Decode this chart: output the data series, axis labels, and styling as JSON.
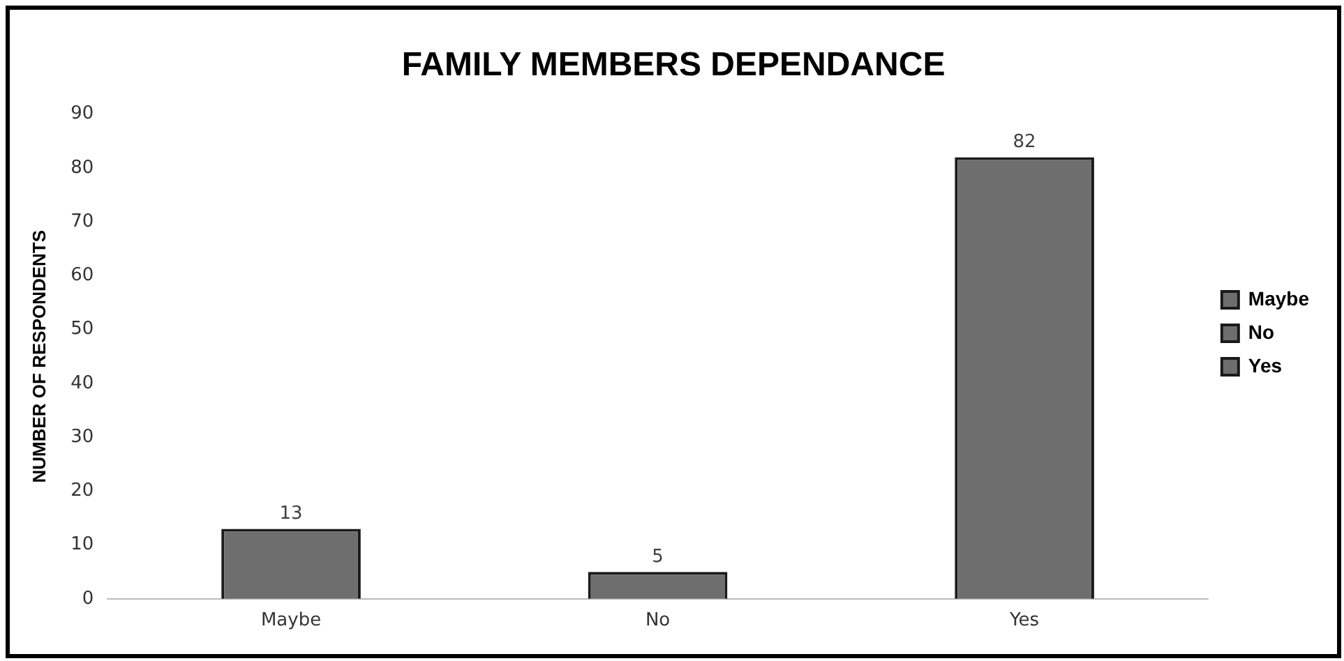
{
  "chart_data": {
    "type": "bar",
    "title": "FAMILY MEMBERS DEPENDANCE",
    "ylabel": "NUMBER OF RESPONDENTS",
    "categories": [
      "Maybe",
      "No",
      "Yes"
    ],
    "series": [
      {
        "name": "Maybe",
        "color": "#6e6e6e",
        "values": [
          13,
          null,
          null
        ]
      },
      {
        "name": "No",
        "color": "#6e6e6e",
        "values": [
          null,
          5,
          null
        ]
      },
      {
        "name": "Yes",
        "color": "#6e6e6e",
        "values": [
          null,
          null,
          82
        ]
      }
    ],
    "ylim": [
      0,
      90
    ],
    "yticks": [
      0,
      10,
      20,
      30,
      40,
      50,
      60,
      70,
      80,
      90
    ],
    "grid": false,
    "legend": "right",
    "data_labels": true
  }
}
